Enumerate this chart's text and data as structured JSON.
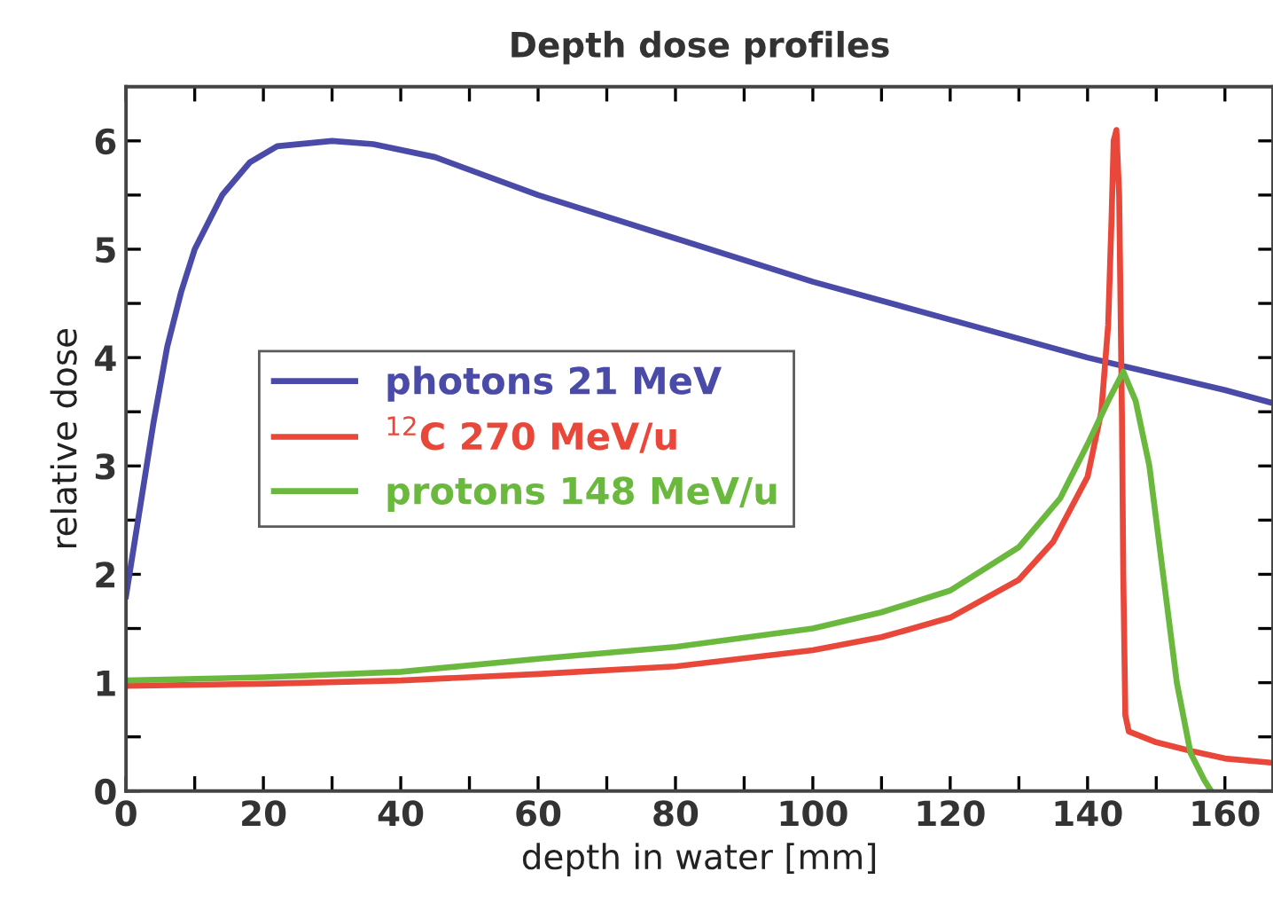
{
  "chart_data": {
    "type": "line",
    "title": "Depth dose profiles",
    "xlabel": "depth in water [mm]",
    "ylabel": "relative dose",
    "xlim": [
      0,
      167
    ],
    "ylim": [
      0,
      6.5
    ],
    "xticks": [
      0,
      {
        "value": 10,
        "label": null
      },
      20,
      {
        "value": 30,
        "label": null
      },
      40,
      {
        "value": 50,
        "label": null
      },
      60,
      {
        "value": 70,
        "label": null
      },
      80,
      {
        "value": 90,
        "label": null
      },
      100,
      {
        "value": 110,
        "label": null
      },
      120,
      {
        "value": 130,
        "label": null
      },
      140,
      {
        "value": 150,
        "label": null
      },
      160
    ],
    "yticks": [
      0,
      {
        "value": 0.5,
        "label": null
      },
      1,
      {
        "value": 1.5,
        "label": null
      },
      2,
      {
        "value": 2.5,
        "label": null
      },
      3,
      {
        "value": 3.5,
        "label": null
      },
      4,
      {
        "value": 4.5,
        "label": null
      },
      5,
      {
        "value": 5.5,
        "label": null
      },
      6
    ],
    "grid": false,
    "legend": "center left",
    "marker": "none",
    "line_style": "solid",
    "series": [
      {
        "name": "photons 21 MeV",
        "color": "#4a4aa8",
        "x": [
          0,
          2,
          4,
          6,
          8,
          10,
          14,
          18,
          22,
          30,
          36,
          45,
          60,
          80,
          100,
          120,
          140,
          160,
          167
        ],
        "values": [
          1.8,
          2.6,
          3.4,
          4.1,
          4.6,
          5.0,
          5.5,
          5.8,
          5.95,
          6.0,
          5.97,
          5.85,
          5.5,
          5.1,
          4.7,
          4.35,
          4.0,
          3.7,
          3.58
        ]
      },
      {
        "name": "$^{12}$C 270 MeV/u",
        "color": "#e8473a",
        "x": [
          0,
          20,
          40,
          60,
          80,
          100,
          110,
          120,
          130,
          135,
          140,
          142,
          143,
          143.5,
          143.8,
          144.2,
          144.6,
          145.0,
          145.2,
          145.5,
          146,
          150,
          155,
          160,
          167
        ],
        "values": [
          0.97,
          0.99,
          1.02,
          1.08,
          1.15,
          1.3,
          1.42,
          1.6,
          1.95,
          2.3,
          2.9,
          3.5,
          4.3,
          5.3,
          6.0,
          6.1,
          5.5,
          3.5,
          2.0,
          0.7,
          0.55,
          0.45,
          0.37,
          0.3,
          0.26
        ]
      },
      {
        "name": "protons 148 MeV/u",
        "color": "#6ab93e",
        "x": [
          0,
          20,
          40,
          60,
          80,
          100,
          110,
          120,
          130,
          136,
          140,
          143,
          145.2,
          147,
          149,
          151,
          153,
          155,
          157,
          158
        ],
        "values": [
          1.02,
          1.05,
          1.1,
          1.22,
          1.33,
          1.5,
          1.65,
          1.85,
          2.25,
          2.7,
          3.2,
          3.6,
          3.87,
          3.6,
          3.0,
          2.0,
          1.0,
          0.35,
          0.1,
          0
        ]
      }
    ]
  }
}
